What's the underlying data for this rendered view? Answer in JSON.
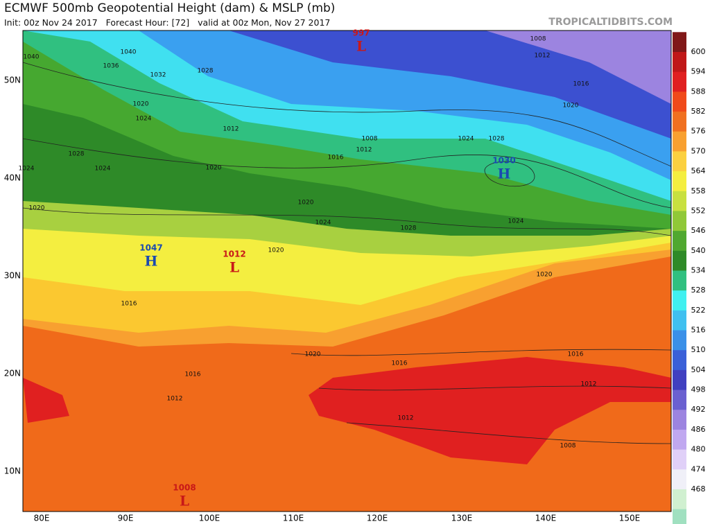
{
  "header": {
    "title": "ECMWF 500mb Geopotential Height (dam) & MSLP (mb)",
    "subtitle": "Init: 00z Nov 24 2017   Forecast Hour: [72]   valid at 00z Mon, Nov 27 2017",
    "watermark": "TROPICALTIDBITS.COM"
  },
  "map": {
    "lat_labels": [
      "50N",
      "40N",
      "30N",
      "20N",
      "10N"
    ],
    "lon_labels": [
      "80E",
      "90E",
      "100E",
      "110E",
      "120E",
      "130E",
      "140E",
      "150E"
    ],
    "pressure_centers": [
      {
        "symbol": "L",
        "value": "997"
      },
      {
        "symbol": "H",
        "value": "1047"
      },
      {
        "symbol": "L",
        "value": "1012"
      },
      {
        "symbol": "H",
        "value": "1030"
      },
      {
        "symbol": "L",
        "value": "1008"
      }
    ],
    "isobar_labels": [
      "1040",
      "1036",
      "1032",
      "1028",
      "1020",
      "1024",
      "1012",
      "1008",
      "1012",
      "1016",
      "1020",
      "1024",
      "1020",
      "1020",
      "1024",
      "1028",
      "1024",
      "1024",
      "1028",
      "1020",
      "1020",
      "1016",
      "1020",
      "1016",
      "1016",
      "1012",
      "1012",
      "1008",
      "1016",
      "1012",
      "1008",
      "1012",
      "1016",
      "1020",
      "1024",
      "1028",
      "1040"
    ]
  },
  "colorbar": {
    "labels": [
      "600",
      "594",
      "588",
      "582",
      "576",
      "570",
      "564",
      "558",
      "552",
      "546",
      "540",
      "534",
      "528",
      "522",
      "516",
      "510",
      "504",
      "498",
      "492",
      "486",
      "480",
      "474",
      "468"
    ]
  }
}
